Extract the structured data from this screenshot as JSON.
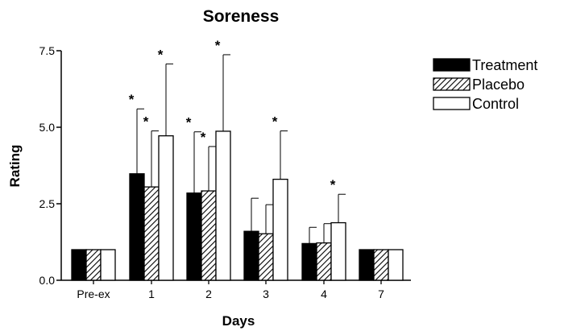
{
  "chart_data": {
    "type": "bar",
    "title": "Soreness",
    "xlabel": "Days",
    "ylabel": "Rating",
    "ylim": [
      0,
      7.5
    ],
    "yticks": [
      "0.0",
      "2.5",
      "5.0",
      "7.5"
    ],
    "categories": [
      "Pre-ex",
      "1",
      "2",
      "3",
      "4",
      "7"
    ],
    "legend_position": "right",
    "series": [
      {
        "name": "Treatment",
        "fill": "solid-black",
        "values": [
          1.0,
          3.48,
          2.85,
          1.6,
          1.2,
          1.0
        ],
        "errors": [
          0,
          2.12,
          2.0,
          1.08,
          0.53,
          0
        ],
        "significant": [
          false,
          true,
          true,
          false,
          false,
          false
        ]
      },
      {
        "name": "Placebo",
        "fill": "diagonal-hatch",
        "values": [
          1.0,
          3.05,
          2.92,
          1.52,
          1.22,
          1.0
        ],
        "errors": [
          0,
          1.83,
          1.45,
          0.95,
          0.63,
          0
        ],
        "significant": [
          false,
          true,
          true,
          false,
          false,
          false
        ]
      },
      {
        "name": "Control",
        "fill": "white",
        "values": [
          1.0,
          4.72,
          4.87,
          3.3,
          1.88,
          1.0
        ],
        "errors": [
          0,
          2.35,
          2.5,
          1.58,
          0.93,
          0
        ],
        "significant": [
          false,
          true,
          true,
          true,
          true,
          false
        ]
      }
    ],
    "significance_marker": "*",
    "grid": false
  }
}
